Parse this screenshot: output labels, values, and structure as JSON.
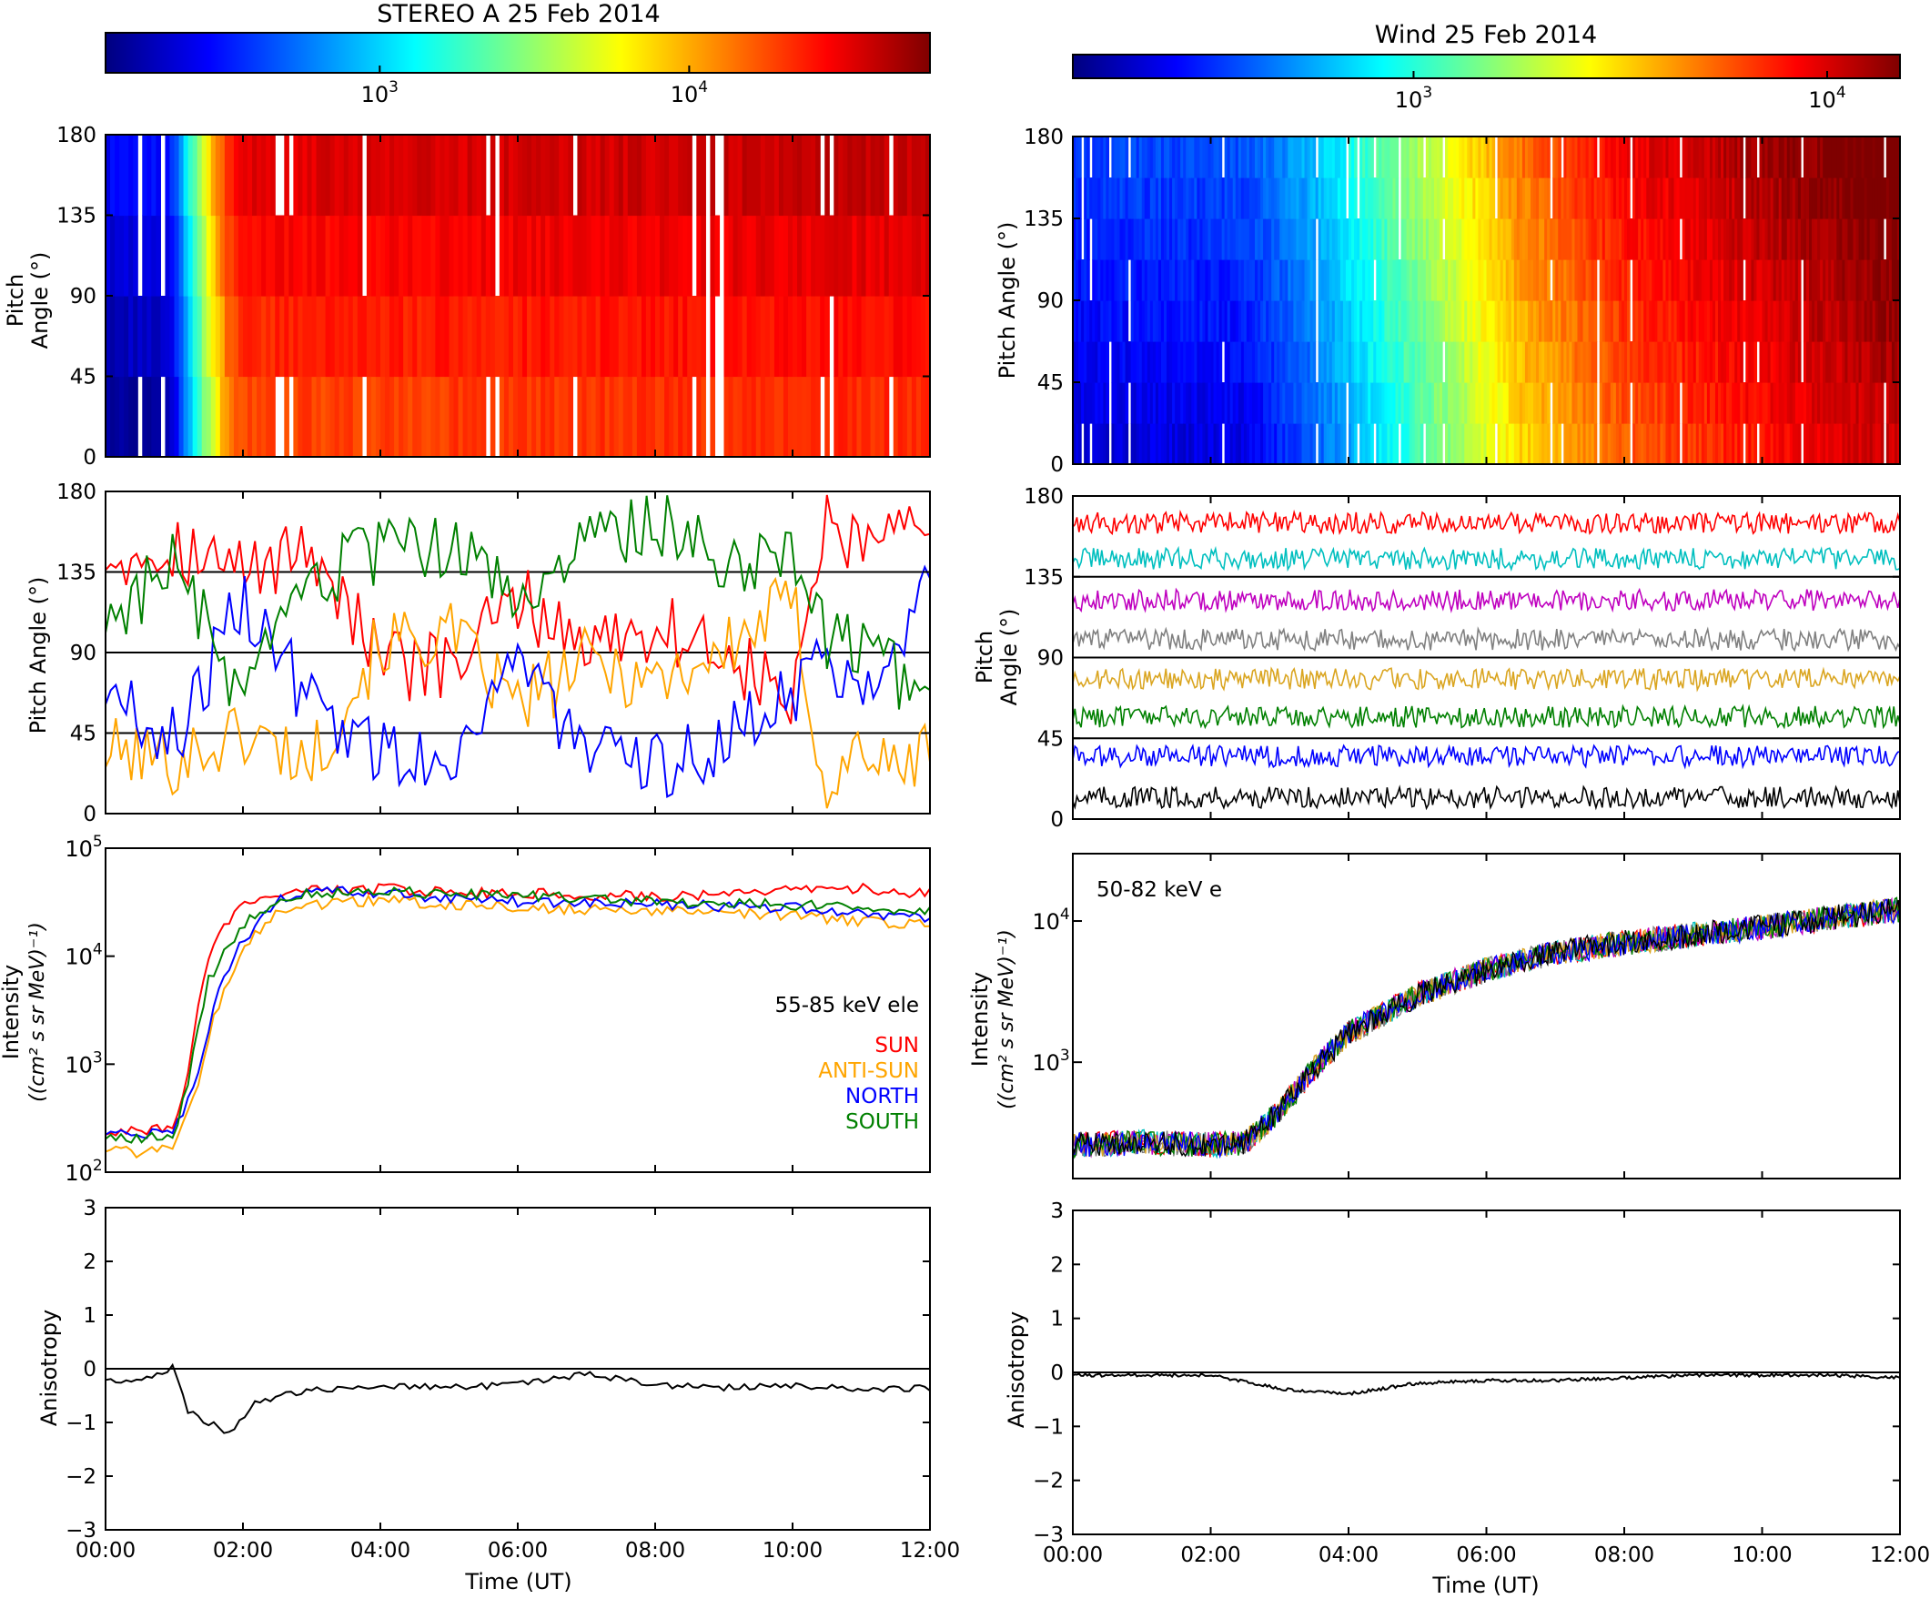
{
  "figure": {
    "left_title": "STEREO A   25 Feb 2014",
    "right_title": "Wind 25 Feb 2014",
    "time_label": "Time (UT)"
  },
  "colorbars": {
    "stops": [
      "#00007f",
      "#0000ff",
      "#0080ff",
      "#00ffff",
      "#80ff80",
      "#ffff00",
      "#ff8000",
      "#ff0000",
      "#7f0000"
    ],
    "left_ticks": [
      {
        "value": 1000,
        "label": "10^3"
      },
      {
        "value": 10000,
        "label": "10^4"
      }
    ],
    "right_ticks": [
      {
        "value": 1000,
        "label": "10^3"
      },
      {
        "value": 10000,
        "label": "10^4"
      }
    ]
  },
  "labels": {
    "pitch_angle_stacked": [
      "Pitch",
      "Angle (°)"
    ],
    "pitch_angle": "Pitch Angle (°)",
    "intensity": [
      "Intensity",
      "((cm² s sr MeV)⁻¹)"
    ],
    "anisotropy": "Anisotropy",
    "left_energy": "55-85 keV ele",
    "right_energy": "50-82 keV e"
  },
  "legend": [
    {
      "name": "SUN",
      "color": "#ff0000"
    },
    {
      "name": "ANTI-SUN",
      "color": "#ffa500"
    },
    {
      "name": "NORTH",
      "color": "#0000ff"
    },
    {
      "name": "SOUTH",
      "color": "#008000"
    }
  ],
  "chart_data": [
    {
      "type": "heatmap",
      "panel": "stereo-pitch-angle-spectrogram",
      "ylabel": "Pitch Angle (°)",
      "xlim": [
        "00:00",
        "12:00"
      ],
      "ylim": [
        0,
        180
      ],
      "yticks": [
        0,
        45,
        90,
        135,
        180
      ],
      "bins_deg": [
        [
          0,
          45
        ],
        [
          45,
          90
        ],
        [
          90,
          135
        ],
        [
          135,
          180
        ]
      ],
      "profile_points_hours": [
        0,
        0.9,
        1.0,
        1.2,
        1.4,
        1.6,
        1.8,
        2.0,
        12.0
      ],
      "profile_intensity": [
        200,
        220,
        300,
        1000,
        3000,
        8000,
        18000,
        25000,
        30000
      ],
      "colorbar_range": [
        130,
        60000
      ]
    },
    {
      "type": "line",
      "panel": "stereo-sector-pitch-angles",
      "ylim": [
        0,
        180
      ],
      "yticks": [
        0,
        45,
        90,
        135,
        180
      ],
      "hlines": [
        45,
        90,
        135
      ],
      "series": [
        {
          "name": "SUN",
          "color": "#ff0000",
          "x": [
            0,
            1,
            2,
            3,
            4,
            5,
            6,
            7,
            8,
            9,
            10,
            10.5,
            11,
            11.5,
            12
          ],
          "values": [
            145,
            150,
            135,
            150,
            85,
            80,
            120,
            95,
            105,
            90,
            60,
            170,
            140,
            160,
            140
          ]
        },
        {
          "name": "ANTI-SUN",
          "color": "#ffa500",
          "x": [
            0,
            1,
            2,
            3,
            4,
            5,
            6,
            7,
            8,
            9,
            10,
            10.5,
            11,
            11.5,
            12
          ],
          "values": [
            35,
            30,
            45,
            30,
            95,
            100,
            60,
            85,
            75,
            90,
            120,
            10,
            40,
            20,
            40
          ]
        },
        {
          "name": "NORTH",
          "color": "#0000ff",
          "x": [
            0,
            1,
            2,
            3,
            4,
            5,
            6,
            7,
            8,
            9,
            10,
            10.5,
            11,
            11.5,
            12
          ],
          "values": [
            70,
            40,
            120,
            60,
            35,
            30,
            90,
            30,
            25,
            40,
            70,
            85,
            75,
            100,
            130
          ]
        },
        {
          "name": "SOUTH",
          "color": "#008000",
          "x": [
            0,
            1,
            2,
            3,
            4,
            5,
            6,
            7,
            8,
            9,
            10,
            10.5,
            11,
            11.5,
            12
          ],
          "values": [
            110,
            140,
            60,
            130,
            145,
            150,
            120,
            150,
            165,
            140,
            150,
            100,
            90,
            80,
            55
          ]
        }
      ]
    },
    {
      "type": "line",
      "panel": "stereo-intensity",
      "log_scale": true,
      "ylim": [
        100,
        100000
      ],
      "yticks": [
        100,
        1000,
        10000,
        100000
      ],
      "series": [
        {
          "name": "SUN",
          "color": "#ff0000",
          "x": [
            0,
            0.5,
            1.0,
            1.2,
            1.4,
            1.6,
            2.0,
            2.5,
            3,
            4,
            6,
            8,
            10,
            11,
            12
          ],
          "values": [
            230,
            240,
            260,
            800,
            5000,
            15000,
            30000,
            38000,
            40000,
            42000,
            38000,
            36000,
            40000,
            42000,
            38000
          ]
        },
        {
          "name": "ANTI-SUN",
          "color": "#ffa500",
          "x": [
            0,
            0.5,
            1.0,
            1.3,
            1.6,
            2.0,
            2.5,
            3,
            4,
            6,
            8,
            10,
            11,
            12
          ],
          "values": [
            160,
            150,
            170,
            500,
            3000,
            12000,
            25000,
            30000,
            33000,
            28000,
            26000,
            24000,
            21000,
            20000
          ]
        },
        {
          "name": "NORTH",
          "color": "#0000ff",
          "x": [
            0,
            0.5,
            1.0,
            1.3,
            1.6,
            2.0,
            2.5,
            3,
            4,
            6,
            8,
            10,
            11,
            12
          ],
          "values": [
            230,
            220,
            240,
            600,
            4000,
            14000,
            32000,
            40000,
            38000,
            32000,
            30000,
            28000,
            25000,
            22000
          ]
        },
        {
          "name": "SOUTH",
          "color": "#008000",
          "x": [
            0,
            0.5,
            1.0,
            1.2,
            1.5,
            2.0,
            2.5,
            3,
            4,
            6,
            8,
            10,
            11,
            12
          ],
          "values": [
            210,
            200,
            220,
            700,
            6000,
            20000,
            34000,
            38000,
            40000,
            36000,
            32000,
            30000,
            28000,
            26000
          ]
        }
      ]
    },
    {
      "type": "line",
      "panel": "stereo-anisotropy",
      "ylim": [
        -3,
        3
      ],
      "yticks": [
        -3,
        -2,
        -1,
        0,
        1,
        2,
        3
      ],
      "x": [
        0,
        0.5,
        1.0,
        1.2,
        1.5,
        1.8,
        2.2,
        3,
        4,
        5,
        6,
        7,
        8,
        9,
        10,
        11,
        12
      ],
      "values": [
        -0.2,
        -0.25,
        0.05,
        -0.8,
        -1.0,
        -1.2,
        -0.6,
        -0.4,
        -0.3,
        -0.35,
        -0.3,
        -0.1,
        -0.3,
        -0.35,
        -0.3,
        -0.4,
        -0.35
      ]
    },
    {
      "type": "heatmap",
      "panel": "wind-pitch-angle-spectrogram",
      "ylabel": "Pitch Angle (°)",
      "xlim": [
        "00:00",
        "12:00"
      ],
      "ylim": [
        0,
        180
      ],
      "yticks": [
        0,
        45,
        90,
        135,
        180
      ],
      "profile_points_hours": [
        0,
        2.5,
        3.5,
        4.5,
        5.5,
        6.5,
        8.0,
        10.0,
        12.0
      ],
      "profile_intensity": [
        280,
        300,
        500,
        1000,
        2000,
        4000,
        7000,
        10000,
        14000
      ],
      "colorbar_range": [
        150,
        15000
      ]
    },
    {
      "type": "line",
      "panel": "wind-sector-pitch-angles",
      "ylim": [
        0,
        180
      ],
      "yticks": [
        0,
        45,
        90,
        135,
        180
      ],
      "hlines": [
        45,
        90,
        135
      ],
      "series": [
        {
          "color": "#ff0000",
          "mean": 165
        },
        {
          "color": "#00bfbf",
          "mean": 145
        },
        {
          "color": "#bf00bf",
          "mean": 122
        },
        {
          "color": "#808080",
          "mean": 100
        },
        {
          "color": "#daa520",
          "mean": 78
        },
        {
          "color": "#008000",
          "mean": 57
        },
        {
          "color": "#0000ff",
          "mean": 35
        },
        {
          "color": "#000000",
          "mean": 12
        }
      ]
    },
    {
      "type": "line",
      "panel": "wind-intensity",
      "log_scale": true,
      "ylim": [
        150,
        30000
      ],
      "yticks": [
        1000,
        10000
      ],
      "x": [
        0,
        1,
        2,
        2.5,
        3,
        3.5,
        4,
        5,
        6,
        7,
        8,
        9,
        10,
        11,
        12
      ],
      "values": [
        260,
        270,
        260,
        270,
        450,
        900,
        1600,
        3000,
        4500,
        6000,
        7000,
        8000,
        9000,
        10500,
        12000
      ],
      "series_colors": [
        "#ff0000",
        "#00bfbf",
        "#bf00bf",
        "#808080",
        "#daa520",
        "#008000",
        "#0000ff",
        "#000000"
      ]
    },
    {
      "type": "line",
      "panel": "wind-anisotropy",
      "ylim": [
        -3,
        3
      ],
      "yticks": [
        -3,
        -2,
        -1,
        0,
        1,
        2,
        3
      ],
      "x": [
        0,
        1,
        2,
        3,
        3.5,
        4,
        5,
        6,
        7,
        8,
        9,
        10,
        11,
        12
      ],
      "values": [
        -0.05,
        -0.05,
        -0.05,
        -0.3,
        -0.35,
        -0.4,
        -0.2,
        -0.15,
        -0.15,
        -0.1,
        -0.05,
        -0.05,
        -0.05,
        -0.1
      ]
    }
  ]
}
